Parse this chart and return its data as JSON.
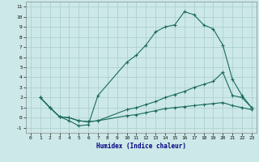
{
  "xlabel": "Humidex (Indice chaleur)",
  "bg_color": "#cce8e8",
  "grid_color": "#aacccc",
  "line_color": "#1a6b5a",
  "xlim": [
    -0.5,
    23.5
  ],
  "ylim": [
    -1.5,
    11.5
  ],
  "xticks": [
    0,
    1,
    2,
    3,
    4,
    5,
    6,
    7,
    8,
    9,
    10,
    11,
    12,
    13,
    14,
    15,
    16,
    17,
    18,
    19,
    20,
    21,
    22,
    23
  ],
  "yticks": [
    -1,
    0,
    1,
    2,
    3,
    4,
    5,
    6,
    7,
    8,
    9,
    10,
    11
  ],
  "curve1_x": [
    1,
    2,
    3,
    4,
    5,
    6,
    7,
    10,
    11,
    12,
    13,
    14,
    15,
    16,
    17,
    18,
    19,
    20,
    21,
    22,
    23
  ],
  "curve1_y": [
    2.0,
    1.0,
    0.1,
    -0.3,
    -0.8,
    -0.7,
    2.2,
    5.5,
    6.2,
    7.2,
    8.5,
    9.0,
    9.2,
    10.5,
    10.2,
    9.2,
    8.8,
    7.2,
    3.8,
    2.2,
    1.0
  ],
  "curve2_x": [
    1,
    2,
    3,
    4,
    5,
    6,
    7,
    10,
    11,
    12,
    13,
    14,
    15,
    16,
    17,
    18,
    19,
    20,
    21,
    22,
    23
  ],
  "curve2_y": [
    2.0,
    1.0,
    0.1,
    0.0,
    -0.3,
    -0.4,
    -0.3,
    0.8,
    1.0,
    1.3,
    1.6,
    2.0,
    2.3,
    2.6,
    3.0,
    3.3,
    3.6,
    4.5,
    2.2,
    2.0,
    1.0
  ],
  "curve3_x": [
    1,
    2,
    3,
    4,
    5,
    6,
    7,
    10,
    11,
    12,
    13,
    14,
    15,
    16,
    17,
    18,
    19,
    20,
    21,
    22,
    23
  ],
  "curve3_y": [
    2.0,
    1.0,
    0.1,
    0.0,
    -0.3,
    -0.4,
    -0.3,
    0.2,
    0.3,
    0.5,
    0.7,
    0.9,
    1.0,
    1.1,
    1.2,
    1.3,
    1.4,
    1.5,
    1.2,
    1.0,
    0.8
  ]
}
